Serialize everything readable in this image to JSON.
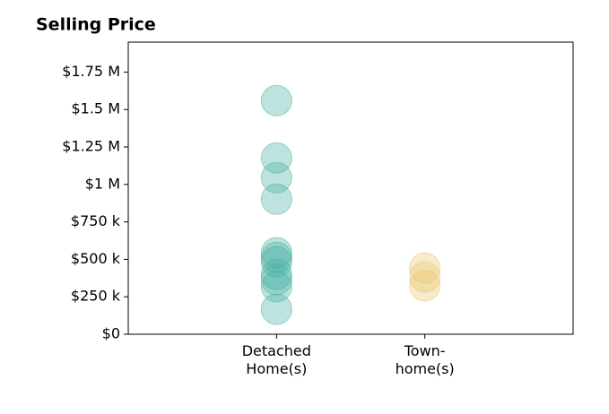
{
  "chart_data": {
    "type": "strip",
    "title": "Selling Price",
    "categories": [
      "Detached\nHome(s)",
      "Town-\nhome(s)"
    ],
    "values": [
      [
        1560000,
        1177000,
        1045000,
        902000,
        544000,
        514000,
        484000,
        400000,
        364000,
        317000,
        167000
      ],
      [
        442000,
        382000,
        323000
      ]
    ],
    "colors": [
      "#45b0a0",
      "#e8c56a"
    ],
    "ylim": [
      0,
      1950000
    ],
    "yticks": [
      {
        "value": 0,
        "label": "$0"
      },
      {
        "value": 250000,
        "label": "$250 k"
      },
      {
        "value": 500000,
        "label": "$500 k"
      },
      {
        "value": 750000,
        "label": "$750 k"
      },
      {
        "value": 1000000,
        "label": "$1 M"
      },
      {
        "value": 1250000,
        "label": "$1.25 M"
      },
      {
        "value": 1500000,
        "label": "$1.5 M"
      },
      {
        "value": 1750000,
        "label": "$1.75 M"
      }
    ],
    "grid": false
  }
}
